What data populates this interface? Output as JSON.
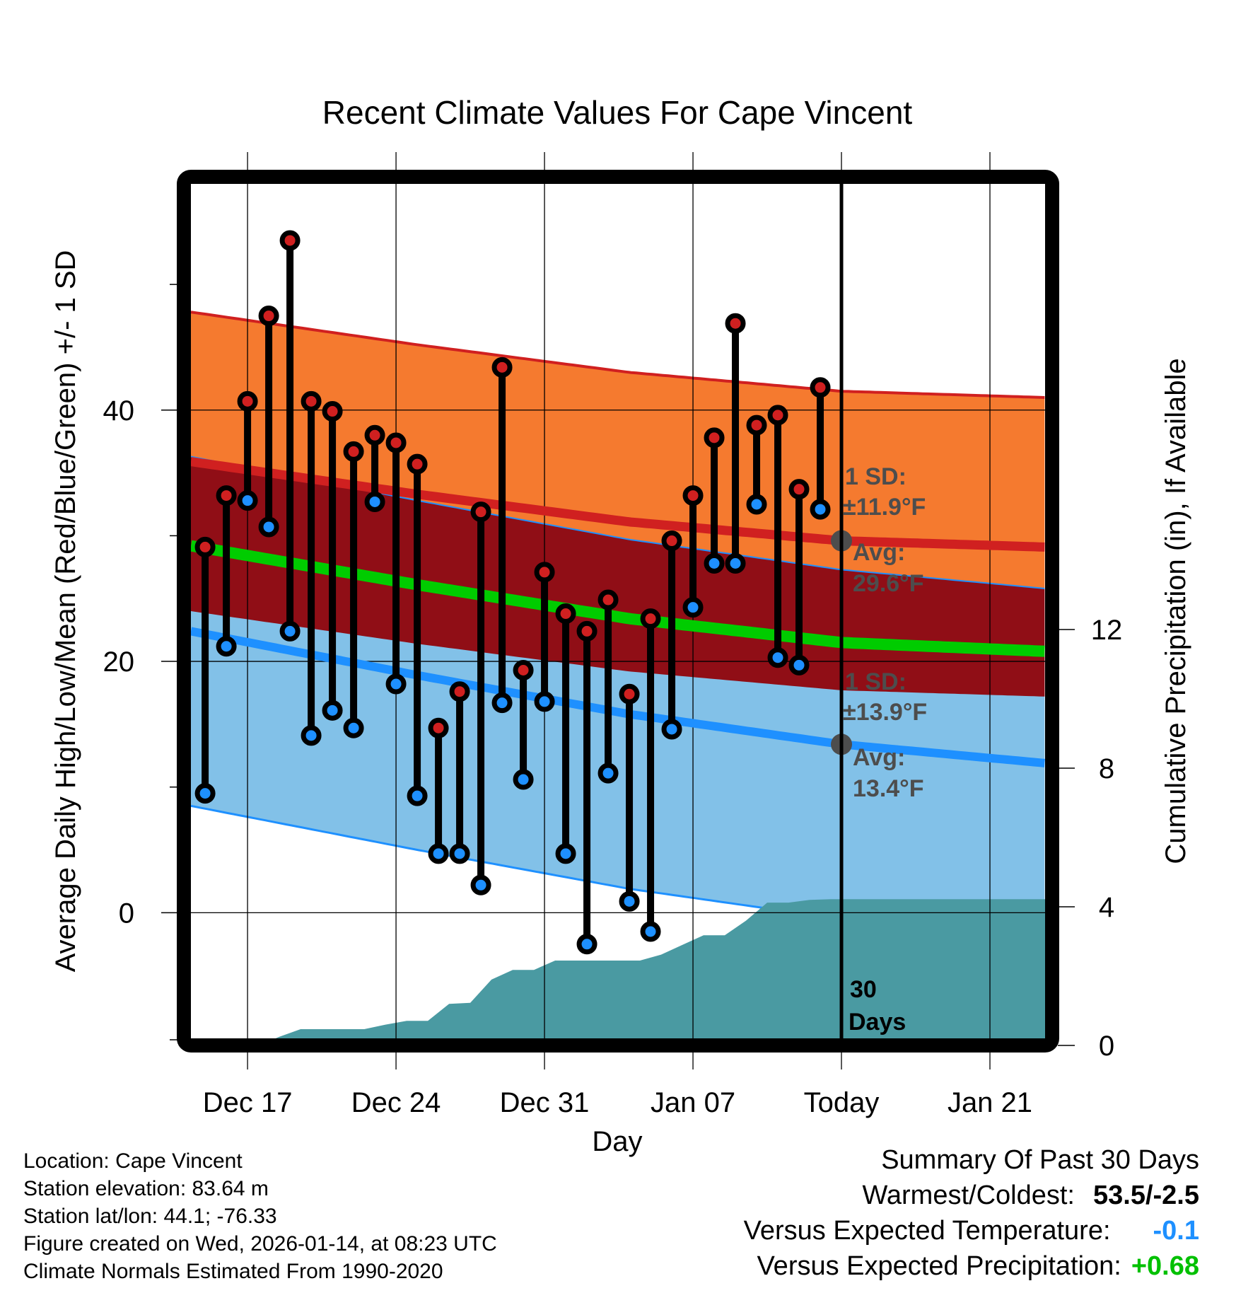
{
  "chart_data": {
    "type": "line",
    "title": "Recent Climate Values For Cape Vincent",
    "xlabel": "Day",
    "ylabel": "Average Daily High/Low/Mean (Red/Blue/Green) +/- 1 SD",
    "y2label": "Cumulative Precipitation (in), If Available",
    "ylim": [
      -10,
      58
    ],
    "y2lim": [
      0,
      14
    ],
    "yticks": [
      0,
      20,
      40
    ],
    "yminor_ticks": [
      10,
      30,
      50
    ],
    "y2ticks": [
      0,
      4,
      8,
      12
    ],
    "xticks": [
      {
        "label": "Dec 17",
        "day": 2
      },
      {
        "label": "Dec 24",
        "day": 9
      },
      {
        "label": "Dec 31",
        "day": 16
      },
      {
        "label": "Jan 07",
        "day": 23
      },
      {
        "label": "Today",
        "day": 30
      },
      {
        "label": "Jan 21",
        "day": 37
      }
    ],
    "xlim_days": [
      -0.67,
      39.6
    ],
    "grid": true,
    "today_day": 30,
    "today_marker_label": "30 Days",
    "days": [
      "Dec 15",
      "Dec 16",
      "Dec 17",
      "Dec 18",
      "Dec 19",
      "Dec 20",
      "Dec 21",
      "Dec 22",
      "Dec 23",
      "Dec 24",
      "Dec 25",
      "Dec 26",
      "Dec 27",
      "Dec 28",
      "Dec 29",
      "Dec 30",
      "Dec 31",
      "Jan 01",
      "Jan 02",
      "Jan 03",
      "Jan 04",
      "Jan 05",
      "Jan 06",
      "Jan 07",
      "Jan 08",
      "Jan 09",
      "Jan 10",
      "Jan 11",
      "Jan 12",
      "Jan 13"
    ],
    "series": [
      {
        "name": "Daily High",
        "color": "#d02020",
        "values": [
          29.1,
          33.2,
          40.7,
          47.5,
          53.5,
          40.7,
          39.9,
          36.7,
          38.0,
          37.4,
          35.7,
          14.7,
          17.6,
          31.9,
          43.4,
          19.3,
          27.1,
          23.8,
          22.4,
          24.9,
          17.4,
          23.4,
          29.6,
          33.2,
          37.8,
          46.9,
          38.8,
          39.6,
          33.7,
          41.8
        ]
      },
      {
        "name": "Daily Low",
        "color": "#1e90ff",
        "values": [
          9.5,
          21.2,
          32.8,
          30.7,
          22.4,
          14.1,
          16.1,
          14.7,
          32.7,
          18.2,
          9.3,
          4.7,
          4.7,
          2.2,
          16.7,
          10.6,
          16.8,
          4.7,
          -2.5,
          11.1,
          0.9,
          -1.5,
          14.6,
          24.3,
          27.8,
          27.8,
          32.5,
          20.3,
          19.7,
          32.1
        ]
      },
      {
        "name": "Cumulative Precipitation (in)",
        "color": "#4a9aa2",
        "values": [
          0,
          0,
          0,
          0.25,
          0.47,
          0.47,
          0.47,
          0.47,
          0.6,
          0.71,
          0.71,
          1.2,
          1.23,
          1.9,
          2.18,
          2.18,
          2.45,
          2.45,
          2.45,
          2.45,
          2.45,
          2.62,
          2.9,
          3.18,
          3.18,
          3.6,
          4.12,
          4.12,
          4.2,
          4.22
        ],
        "extends_flat_to_end": true
      }
    ],
    "normals": {
      "anchor_days": [
        -0.67,
        10,
        20,
        30,
        39.6
      ],
      "high_avg": [
        35.9,
        33.3,
        31.1,
        29.6,
        29.1
      ],
      "high_sd": 11.9,
      "low_avg": [
        22.4,
        18.9,
        15.8,
        13.4,
        11.9
      ],
      "low_sd": 13.9,
      "mean_avg": [
        29.2,
        26.1,
        23.4,
        21.5,
        20.8
      ],
      "colors": {
        "high_band": "#f57a2f",
        "overlap_band": "#900e16",
        "low_band": "#82c1e8",
        "high_line": "#d02020",
        "low_line": "#1e90ff",
        "mean_line": "#00cc00",
        "precip_fill": "#4a9aa2"
      }
    },
    "annotations": [
      {
        "lines": [
          "1 SD:",
          "±11.9°F"
        ],
        "near": "high band at today"
      },
      {
        "lines": [
          "Avg:",
          "29.6°F"
        ],
        "near": "high average at today"
      },
      {
        "lines": [
          "1 SD:",
          "±13.9°F"
        ],
        "near": "low band at today"
      },
      {
        "lines": [
          "Avg:",
          "13.4°F"
        ],
        "near": "low average at today"
      }
    ]
  },
  "info": {
    "location": "Location: Cape Vincent",
    "elevation": "Station elevation: 83.64 m",
    "latlon": "Station lat/lon: 44.1; -76.33",
    "created": "Figure created on Wed, 2026-01-14, at 08:23 UTC",
    "normals": "Climate Normals Estimated From 1990-2020"
  },
  "summary": {
    "title": "Summary Of Past 30 Days",
    "warmest_coldest_label": "Warmest/Coldest:",
    "warmest_coldest_value": "53.5/-2.5",
    "temp_label": "Versus Expected Temperature:",
    "temp_value": "-0.1",
    "precip_label": "Versus Expected Precipitation:",
    "precip_value": "+0.68"
  }
}
